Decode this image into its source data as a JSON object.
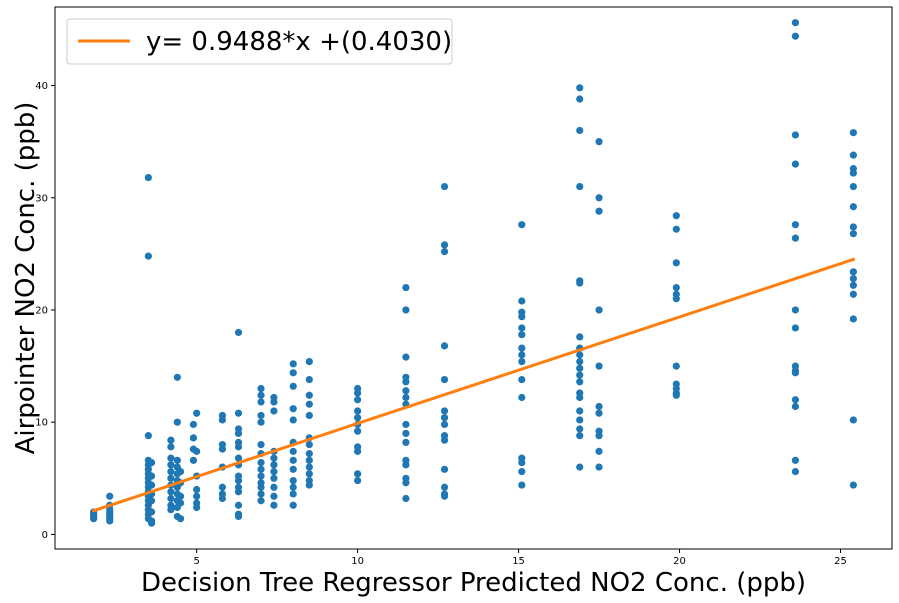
{
  "chart_data": {
    "type": "scatter",
    "title": "",
    "xlabel": "Decision Tree Regressor Predicted NO2 Conc. (ppb)",
    "ylabel": "Airpointer NO2 Conc. (ppb)",
    "xlim": [
      0.6,
      26.6
    ],
    "ylim": [
      -1.3,
      47.0
    ],
    "xticks": [
      5,
      10,
      15,
      20,
      25
    ],
    "yticks": [
      0,
      10,
      20,
      30,
      40
    ],
    "grid": false,
    "legend": {
      "placement": "top-left",
      "entries": [
        "y= 0.9488*x +(0.4030)"
      ]
    },
    "colors": {
      "scatter": "#1f77b4",
      "fit": "#ff7f0e"
    },
    "fit_line": {
      "name": "y= 0.9488*x +(0.4030)",
      "slope": 0.9488,
      "intercept": 0.403,
      "x_range": [
        1.8,
        25.4
      ]
    },
    "series": [
      {
        "name": "",
        "points": [
          [
            1.8,
            2.0
          ],
          [
            1.8,
            1.8
          ],
          [
            1.8,
            1.6
          ],
          [
            1.8,
            1.4
          ],
          [
            2.3,
            3.4
          ],
          [
            2.3,
            2.6
          ],
          [
            2.3,
            2.2
          ],
          [
            2.3,
            2.0
          ],
          [
            2.3,
            1.8
          ],
          [
            2.3,
            1.6
          ],
          [
            2.3,
            1.4
          ],
          [
            2.3,
            1.2
          ],
          [
            3.5,
            31.8
          ],
          [
            3.5,
            24.8
          ],
          [
            3.5,
            8.8
          ],
          [
            3.5,
            6.6
          ],
          [
            3.5,
            6.2
          ],
          [
            3.5,
            5.8
          ],
          [
            3.5,
            5.4
          ],
          [
            3.5,
            5.0
          ],
          [
            3.5,
            4.6
          ],
          [
            3.5,
            4.2
          ],
          [
            3.5,
            3.8
          ],
          [
            3.5,
            3.4
          ],
          [
            3.5,
            3.0
          ],
          [
            3.5,
            2.6
          ],
          [
            3.5,
            2.2
          ],
          [
            3.5,
            1.8
          ],
          [
            3.5,
            1.4
          ],
          [
            3.6,
            6.4
          ],
          [
            3.6,
            5.2
          ],
          [
            3.6,
            4.4
          ],
          [
            3.6,
            3.6
          ],
          [
            3.6,
            3.0
          ],
          [
            3.6,
            2.0
          ],
          [
            3.6,
            1.2
          ],
          [
            3.6,
            1.0
          ],
          [
            4.2,
            8.4
          ],
          [
            4.2,
            7.8
          ],
          [
            4.2,
            6.8
          ],
          [
            4.2,
            6.2
          ],
          [
            4.2,
            5.6
          ],
          [
            4.2,
            5.0
          ],
          [
            4.2,
            4.4
          ],
          [
            4.2,
            3.8
          ],
          [
            4.2,
            3.2
          ],
          [
            4.2,
            2.6
          ],
          [
            4.2,
            2.2
          ],
          [
            4.4,
            14.0
          ],
          [
            4.4,
            10.0
          ],
          [
            4.4,
            6.6
          ],
          [
            4.4,
            6.0
          ],
          [
            4.4,
            5.4
          ],
          [
            4.4,
            4.8
          ],
          [
            4.4,
            4.2
          ],
          [
            4.4,
            3.6
          ],
          [
            4.4,
            3.0
          ],
          [
            4.4,
            2.4
          ],
          [
            4.4,
            1.6
          ],
          [
            4.5,
            5.6
          ],
          [
            4.5,
            4.6
          ],
          [
            4.5,
            3.4
          ],
          [
            4.5,
            2.8
          ],
          [
            4.5,
            1.4
          ],
          [
            4.9,
            9.8
          ],
          [
            4.9,
            8.6
          ],
          [
            4.9,
            7.6
          ],
          [
            4.9,
            6.6
          ],
          [
            5.0,
            10.8
          ],
          [
            5.0,
            7.4
          ],
          [
            5.0,
            5.2
          ],
          [
            5.0,
            4.0
          ],
          [
            5.0,
            3.4
          ],
          [
            5.0,
            2.8
          ],
          [
            5.0,
            2.4
          ],
          [
            5.8,
            10.6
          ],
          [
            5.8,
            10.2
          ],
          [
            5.8,
            8.0
          ],
          [
            5.8,
            7.6
          ],
          [
            5.8,
            6.0
          ],
          [
            5.8,
            4.2
          ],
          [
            5.8,
            3.6
          ],
          [
            5.8,
            3.2
          ],
          [
            6.3,
            18.0
          ],
          [
            6.3,
            10.8
          ],
          [
            6.3,
            9.4
          ],
          [
            6.3,
            9.0
          ],
          [
            6.3,
            8.2
          ],
          [
            6.3,
            7.8
          ],
          [
            6.3,
            6.8
          ],
          [
            6.3,
            6.2
          ],
          [
            6.3,
            5.2
          ],
          [
            6.3,
            4.8
          ],
          [
            6.3,
            4.2
          ],
          [
            6.3,
            3.8
          ],
          [
            6.3,
            2.6
          ],
          [
            6.3,
            1.8
          ],
          [
            6.3,
            1.6
          ],
          [
            7.0,
            13.0
          ],
          [
            7.0,
            12.4
          ],
          [
            7.0,
            11.8
          ],
          [
            7.0,
            10.6
          ],
          [
            7.0,
            10.0
          ],
          [
            7.0,
            8.0
          ],
          [
            7.0,
            7.2
          ],
          [
            7.0,
            6.4
          ],
          [
            7.0,
            5.8
          ],
          [
            7.0,
            5.2
          ],
          [
            7.0,
            4.6
          ],
          [
            7.0,
            4.2
          ],
          [
            7.0,
            3.6
          ],
          [
            7.0,
            3.0
          ],
          [
            7.4,
            12.2
          ],
          [
            7.4,
            11.8
          ],
          [
            7.4,
            11.0
          ],
          [
            7.4,
            7.4
          ],
          [
            7.4,
            6.8
          ],
          [
            7.4,
            6.2
          ],
          [
            7.4,
            5.6
          ],
          [
            7.4,
            5.0
          ],
          [
            7.4,
            4.2
          ],
          [
            7.4,
            3.4
          ],
          [
            7.4,
            2.6
          ],
          [
            8.0,
            15.2
          ],
          [
            8.0,
            14.4
          ],
          [
            8.0,
            13.2
          ],
          [
            8.0,
            11.2
          ],
          [
            8.0,
            10.2
          ],
          [
            8.0,
            8.2
          ],
          [
            8.0,
            7.4
          ],
          [
            8.0,
            6.6
          ],
          [
            8.0,
            5.8
          ],
          [
            8.0,
            4.8
          ],
          [
            8.0,
            4.2
          ],
          [
            8.0,
            3.6
          ],
          [
            8.0,
            2.6
          ],
          [
            8.5,
            15.4
          ],
          [
            8.5,
            13.8
          ],
          [
            8.5,
            12.4
          ],
          [
            8.5,
            11.6
          ],
          [
            8.5,
            10.6
          ],
          [
            8.5,
            8.6
          ],
          [
            8.5,
            8.0
          ],
          [
            8.5,
            7.2
          ],
          [
            8.5,
            6.6
          ],
          [
            8.5,
            6.0
          ],
          [
            8.5,
            5.4
          ],
          [
            8.5,
            4.8
          ],
          [
            8.5,
            4.4
          ],
          [
            10.0,
            13.0
          ],
          [
            10.0,
            12.6
          ],
          [
            10.0,
            12.0
          ],
          [
            10.0,
            11.0
          ],
          [
            10.0,
            10.4
          ],
          [
            10.0,
            9.8
          ],
          [
            10.0,
            9.2
          ],
          [
            10.0,
            7.8
          ],
          [
            10.0,
            7.4
          ],
          [
            10.0,
            5.4
          ],
          [
            10.0,
            4.8
          ],
          [
            11.5,
            22.0
          ],
          [
            11.5,
            20.0
          ],
          [
            11.5,
            15.8
          ],
          [
            11.5,
            14.0
          ],
          [
            11.5,
            13.6
          ],
          [
            11.5,
            12.8
          ],
          [
            11.5,
            12.2
          ],
          [
            11.5,
            11.6
          ],
          [
            11.5,
            9.8
          ],
          [
            11.5,
            9.0
          ],
          [
            11.5,
            8.2
          ],
          [
            11.5,
            6.6
          ],
          [
            11.5,
            6.2
          ],
          [
            11.5,
            5.0
          ],
          [
            11.5,
            4.6
          ],
          [
            11.5,
            3.2
          ],
          [
            12.7,
            31.0
          ],
          [
            12.7,
            25.8
          ],
          [
            12.7,
            25.2
          ],
          [
            12.7,
            16.8
          ],
          [
            12.7,
            13.8
          ],
          [
            12.7,
            11.0
          ],
          [
            12.7,
            10.4
          ],
          [
            12.7,
            9.8
          ],
          [
            12.7,
            8.8
          ],
          [
            12.7,
            8.4
          ],
          [
            12.7,
            5.8
          ],
          [
            12.7,
            4.2
          ],
          [
            12.7,
            3.6
          ],
          [
            12.7,
            3.4
          ],
          [
            15.1,
            27.6
          ],
          [
            15.1,
            20.8
          ],
          [
            15.1,
            19.8
          ],
          [
            15.1,
            19.4
          ],
          [
            15.1,
            18.4
          ],
          [
            15.1,
            17.8
          ],
          [
            15.1,
            16.6
          ],
          [
            15.1,
            16.0
          ],
          [
            15.1,
            15.4
          ],
          [
            15.1,
            13.8
          ],
          [
            15.1,
            12.2
          ],
          [
            15.1,
            6.8
          ],
          [
            15.1,
            6.4
          ],
          [
            15.1,
            5.6
          ],
          [
            15.1,
            4.4
          ],
          [
            16.9,
            39.8
          ],
          [
            16.9,
            38.8
          ],
          [
            16.9,
            36.0
          ],
          [
            16.9,
            31.0
          ],
          [
            16.9,
            22.6
          ],
          [
            16.9,
            22.4
          ],
          [
            16.9,
            17.6
          ],
          [
            16.9,
            16.6
          ],
          [
            16.9,
            16.0
          ],
          [
            16.9,
            15.4
          ],
          [
            16.9,
            14.8
          ],
          [
            16.9,
            14.2
          ],
          [
            16.9,
            13.6
          ],
          [
            16.9,
            12.6
          ],
          [
            16.9,
            12.2
          ],
          [
            16.9,
            11.0
          ],
          [
            16.9,
            10.2
          ],
          [
            16.9,
            9.4
          ],
          [
            16.9,
            8.8
          ],
          [
            16.9,
            6.0
          ],
          [
            17.5,
            35.0
          ],
          [
            17.5,
            30.0
          ],
          [
            17.5,
            28.8
          ],
          [
            17.5,
            20.0
          ],
          [
            17.5,
            15.0
          ],
          [
            17.5,
            11.4
          ],
          [
            17.5,
            10.8
          ],
          [
            17.5,
            9.2
          ],
          [
            17.5,
            8.8
          ],
          [
            17.5,
            7.4
          ],
          [
            17.5,
            6.0
          ],
          [
            19.9,
            28.4
          ],
          [
            19.9,
            27.2
          ],
          [
            19.9,
            24.2
          ],
          [
            19.9,
            22.0
          ],
          [
            19.9,
            21.4
          ],
          [
            19.9,
            21.0
          ],
          [
            19.9,
            15.0
          ],
          [
            19.9,
            13.4
          ],
          [
            19.9,
            13.0
          ],
          [
            19.9,
            12.6
          ],
          [
            19.9,
            12.4
          ],
          [
            23.6,
            45.6
          ],
          [
            23.6,
            44.4
          ],
          [
            23.6,
            35.6
          ],
          [
            23.6,
            33.0
          ],
          [
            23.6,
            27.6
          ],
          [
            23.6,
            26.4
          ],
          [
            23.6,
            20.0
          ],
          [
            23.6,
            18.4
          ],
          [
            23.6,
            15.0
          ],
          [
            23.6,
            14.6
          ],
          [
            23.6,
            14.4
          ],
          [
            23.6,
            12.0
          ],
          [
            23.6,
            11.4
          ],
          [
            23.6,
            6.6
          ],
          [
            23.6,
            5.6
          ],
          [
            25.4,
            35.8
          ],
          [
            25.4,
            33.8
          ],
          [
            25.4,
            32.6
          ],
          [
            25.4,
            32.2
          ],
          [
            25.4,
            31.0
          ],
          [
            25.4,
            29.2
          ],
          [
            25.4,
            27.4
          ],
          [
            25.4,
            26.8
          ],
          [
            25.4,
            23.4
          ],
          [
            25.4,
            22.8
          ],
          [
            25.4,
            22.2
          ],
          [
            25.4,
            21.4
          ],
          [
            25.4,
            19.2
          ],
          [
            25.4,
            10.2
          ],
          [
            25.4,
            4.4
          ]
        ]
      }
    ]
  }
}
